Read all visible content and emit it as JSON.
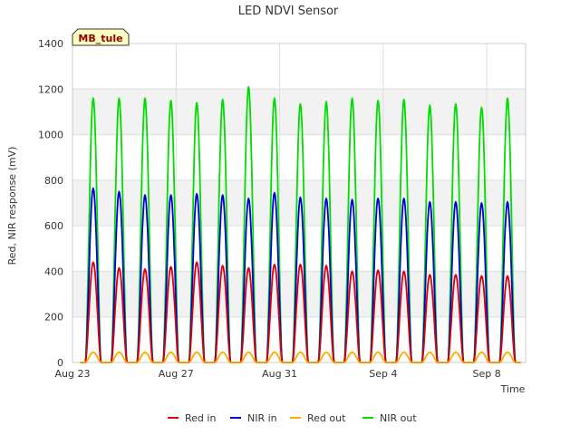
{
  "chart_data": {
    "type": "line",
    "title": "LED NDVI Sensor",
    "xlabel": "Time",
    "ylabel": "Red, NIR response (mV)",
    "badge": "MB_tule",
    "ylim": [
      0,
      1400
    ],
    "xlim": [
      0,
      17.5
    ],
    "yticks": [
      0,
      200,
      400,
      600,
      800,
      1000,
      1200,
      1400
    ],
    "xticks": [
      {
        "value": 0,
        "label": "Aug 23"
      },
      {
        "value": 4,
        "label": "Aug 27"
      },
      {
        "value": 8,
        "label": "Aug 31"
      },
      {
        "value": 12,
        "label": "Sep 4"
      },
      {
        "value": 16,
        "label": "Sep 8"
      }
    ],
    "grid": true,
    "legend_position": "bottom",
    "colors": {
      "bands": "#f2f2f2",
      "grid": "#dddddd"
    },
    "daily_peak_x": [
      0.8,
      1.8,
      2.8,
      3.8,
      4.8,
      5.8,
      6.8,
      7.8,
      8.8,
      9.8,
      10.8,
      11.8,
      12.8,
      13.8,
      14.8,
      15.8,
      16.8
    ],
    "series": [
      {
        "name": "Red in",
        "color": "#dd0000",
        "peaks": [
          440,
          415,
          410,
          420,
          440,
          425,
          415,
          430,
          430,
          425,
          400,
          405,
          400,
          385,
          385,
          380,
          380
        ]
      },
      {
        "name": "NIR in",
        "color": "#0000dd",
        "peaks": [
          765,
          750,
          735,
          735,
          740,
          735,
          720,
          745,
          725,
          720,
          715,
          720,
          720,
          705,
          705,
          700,
          705
        ]
      },
      {
        "name": "Red out",
        "color": "#ffaa00",
        "peaks": [
          45,
          45,
          45,
          45,
          45,
          45,
          45,
          45,
          45,
          45,
          45,
          45,
          45,
          45,
          45,
          45,
          45
        ]
      },
      {
        "name": "NIR out",
        "color": "#00dd00",
        "peaks": [
          1160,
          1160,
          1160,
          1150,
          1140,
          1155,
          1210,
          1160,
          1135,
          1145,
          1160,
          1150,
          1155,
          1130,
          1135,
          1120,
          1160
        ]
      }
    ]
  }
}
